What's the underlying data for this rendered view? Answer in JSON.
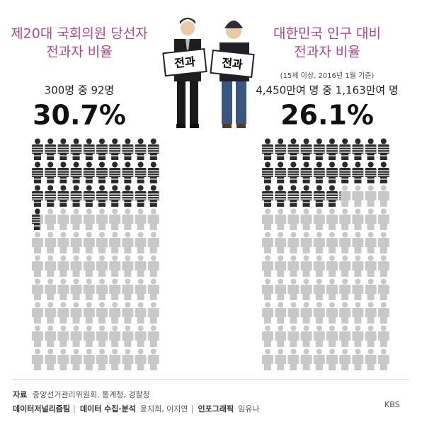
{
  "panels": [
    {
      "title_lines": [
        "제20대 국회의원 당선자",
        "전과자 비율"
      ],
      "count_text": "300명 중 92명",
      "value": 30.7,
      "value_label": "30.7%"
    },
    {
      "title_lines": [
        "대한민국 인구 대비",
        "전과자 비율"
      ],
      "note": "(15세 이상, 2016년 1월 기준)",
      "count_text": "4,450만여 명 중 1,163만여 명",
      "value": 26.1,
      "value_label": "26.1%"
    }
  ],
  "signs": [
    "전과",
    "전과"
  ],
  "footer": {
    "source_label": "자료",
    "source": "중앙선거관리위원회, 통계청, 경찰청",
    "credits": [
      {
        "label": "데이터저널리즘팀",
        "names": ""
      },
      {
        "label": "데이터 수집·분석",
        "names": "윤지희, 이지연"
      },
      {
        "label": "인포그래픽",
        "names": "임유나"
      }
    ],
    "logo": "KBS"
  }
}
